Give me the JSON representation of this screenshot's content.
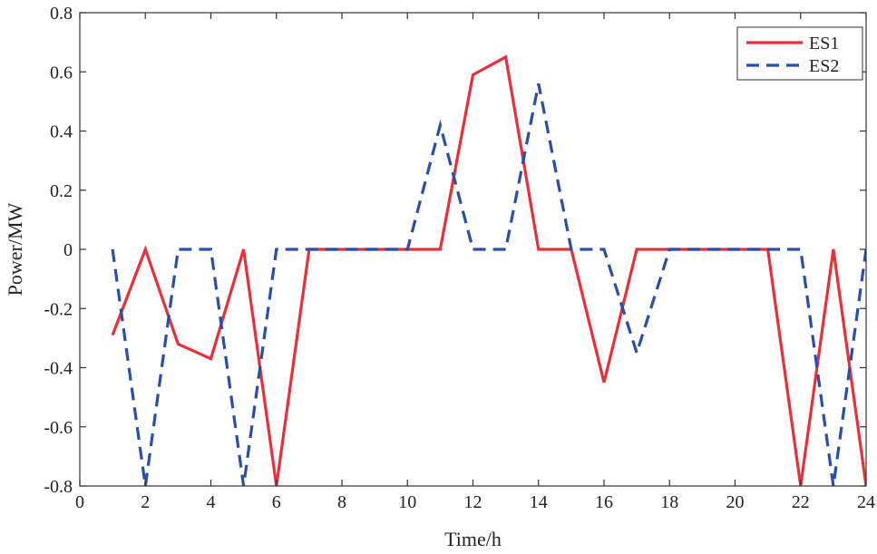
{
  "chart_data": {
    "type": "line",
    "title": "",
    "xlabel": "Time/h",
    "ylabel": "Power/MW",
    "xlim": [
      0,
      24
    ],
    "ylim": [
      -0.8,
      0.8
    ],
    "xticks": [
      0,
      2,
      4,
      6,
      8,
      10,
      12,
      14,
      16,
      18,
      20,
      22,
      24
    ],
    "yticks": [
      -0.8,
      -0.6,
      -0.4,
      -0.2,
      0,
      0.2,
      0.4,
      0.6,
      0.8
    ],
    "xtick_labels": [
      "0",
      "2",
      "4",
      "6",
      "8",
      "10",
      "12",
      "14",
      "16",
      "18",
      "20",
      "22",
      "24"
    ],
    "ytick_labels": [
      "-0.8",
      "-0.6",
      "-0.4",
      "-0.2",
      "0",
      "0.2",
      "0.4",
      "0.6",
      "0.8"
    ],
    "grid": false,
    "legend_position": "top-right",
    "x": [
      1,
      2,
      3,
      4,
      5,
      6,
      7,
      8,
      9,
      10,
      11,
      12,
      13,
      14,
      15,
      16,
      17,
      18,
      19,
      20,
      21,
      22,
      23,
      24
    ],
    "series": [
      {
        "name": "ES1",
        "color": "#e8303a",
        "dash": "solid",
        "values": [
          -0.29,
          0.0,
          -0.32,
          -0.37,
          0.0,
          -0.8,
          0.0,
          0.0,
          0.0,
          0.0,
          0.0,
          0.59,
          0.65,
          0.0,
          0.0,
          -0.45,
          0.0,
          0.0,
          0.0,
          0.0,
          0.0,
          -0.8,
          0.0,
          -0.8
        ]
      },
      {
        "name": "ES2",
        "color": "#2a4fa8",
        "dash": "dashed",
        "values": [
          0.0,
          -0.8,
          0.0,
          0.0,
          -0.8,
          0.0,
          0.0,
          0.0,
          0.0,
          0.0,
          0.42,
          0.0,
          0.0,
          0.56,
          0.0,
          0.0,
          -0.35,
          0.0,
          0.0,
          0.0,
          0.0,
          0.0,
          -0.8,
          0.0
        ]
      }
    ]
  }
}
